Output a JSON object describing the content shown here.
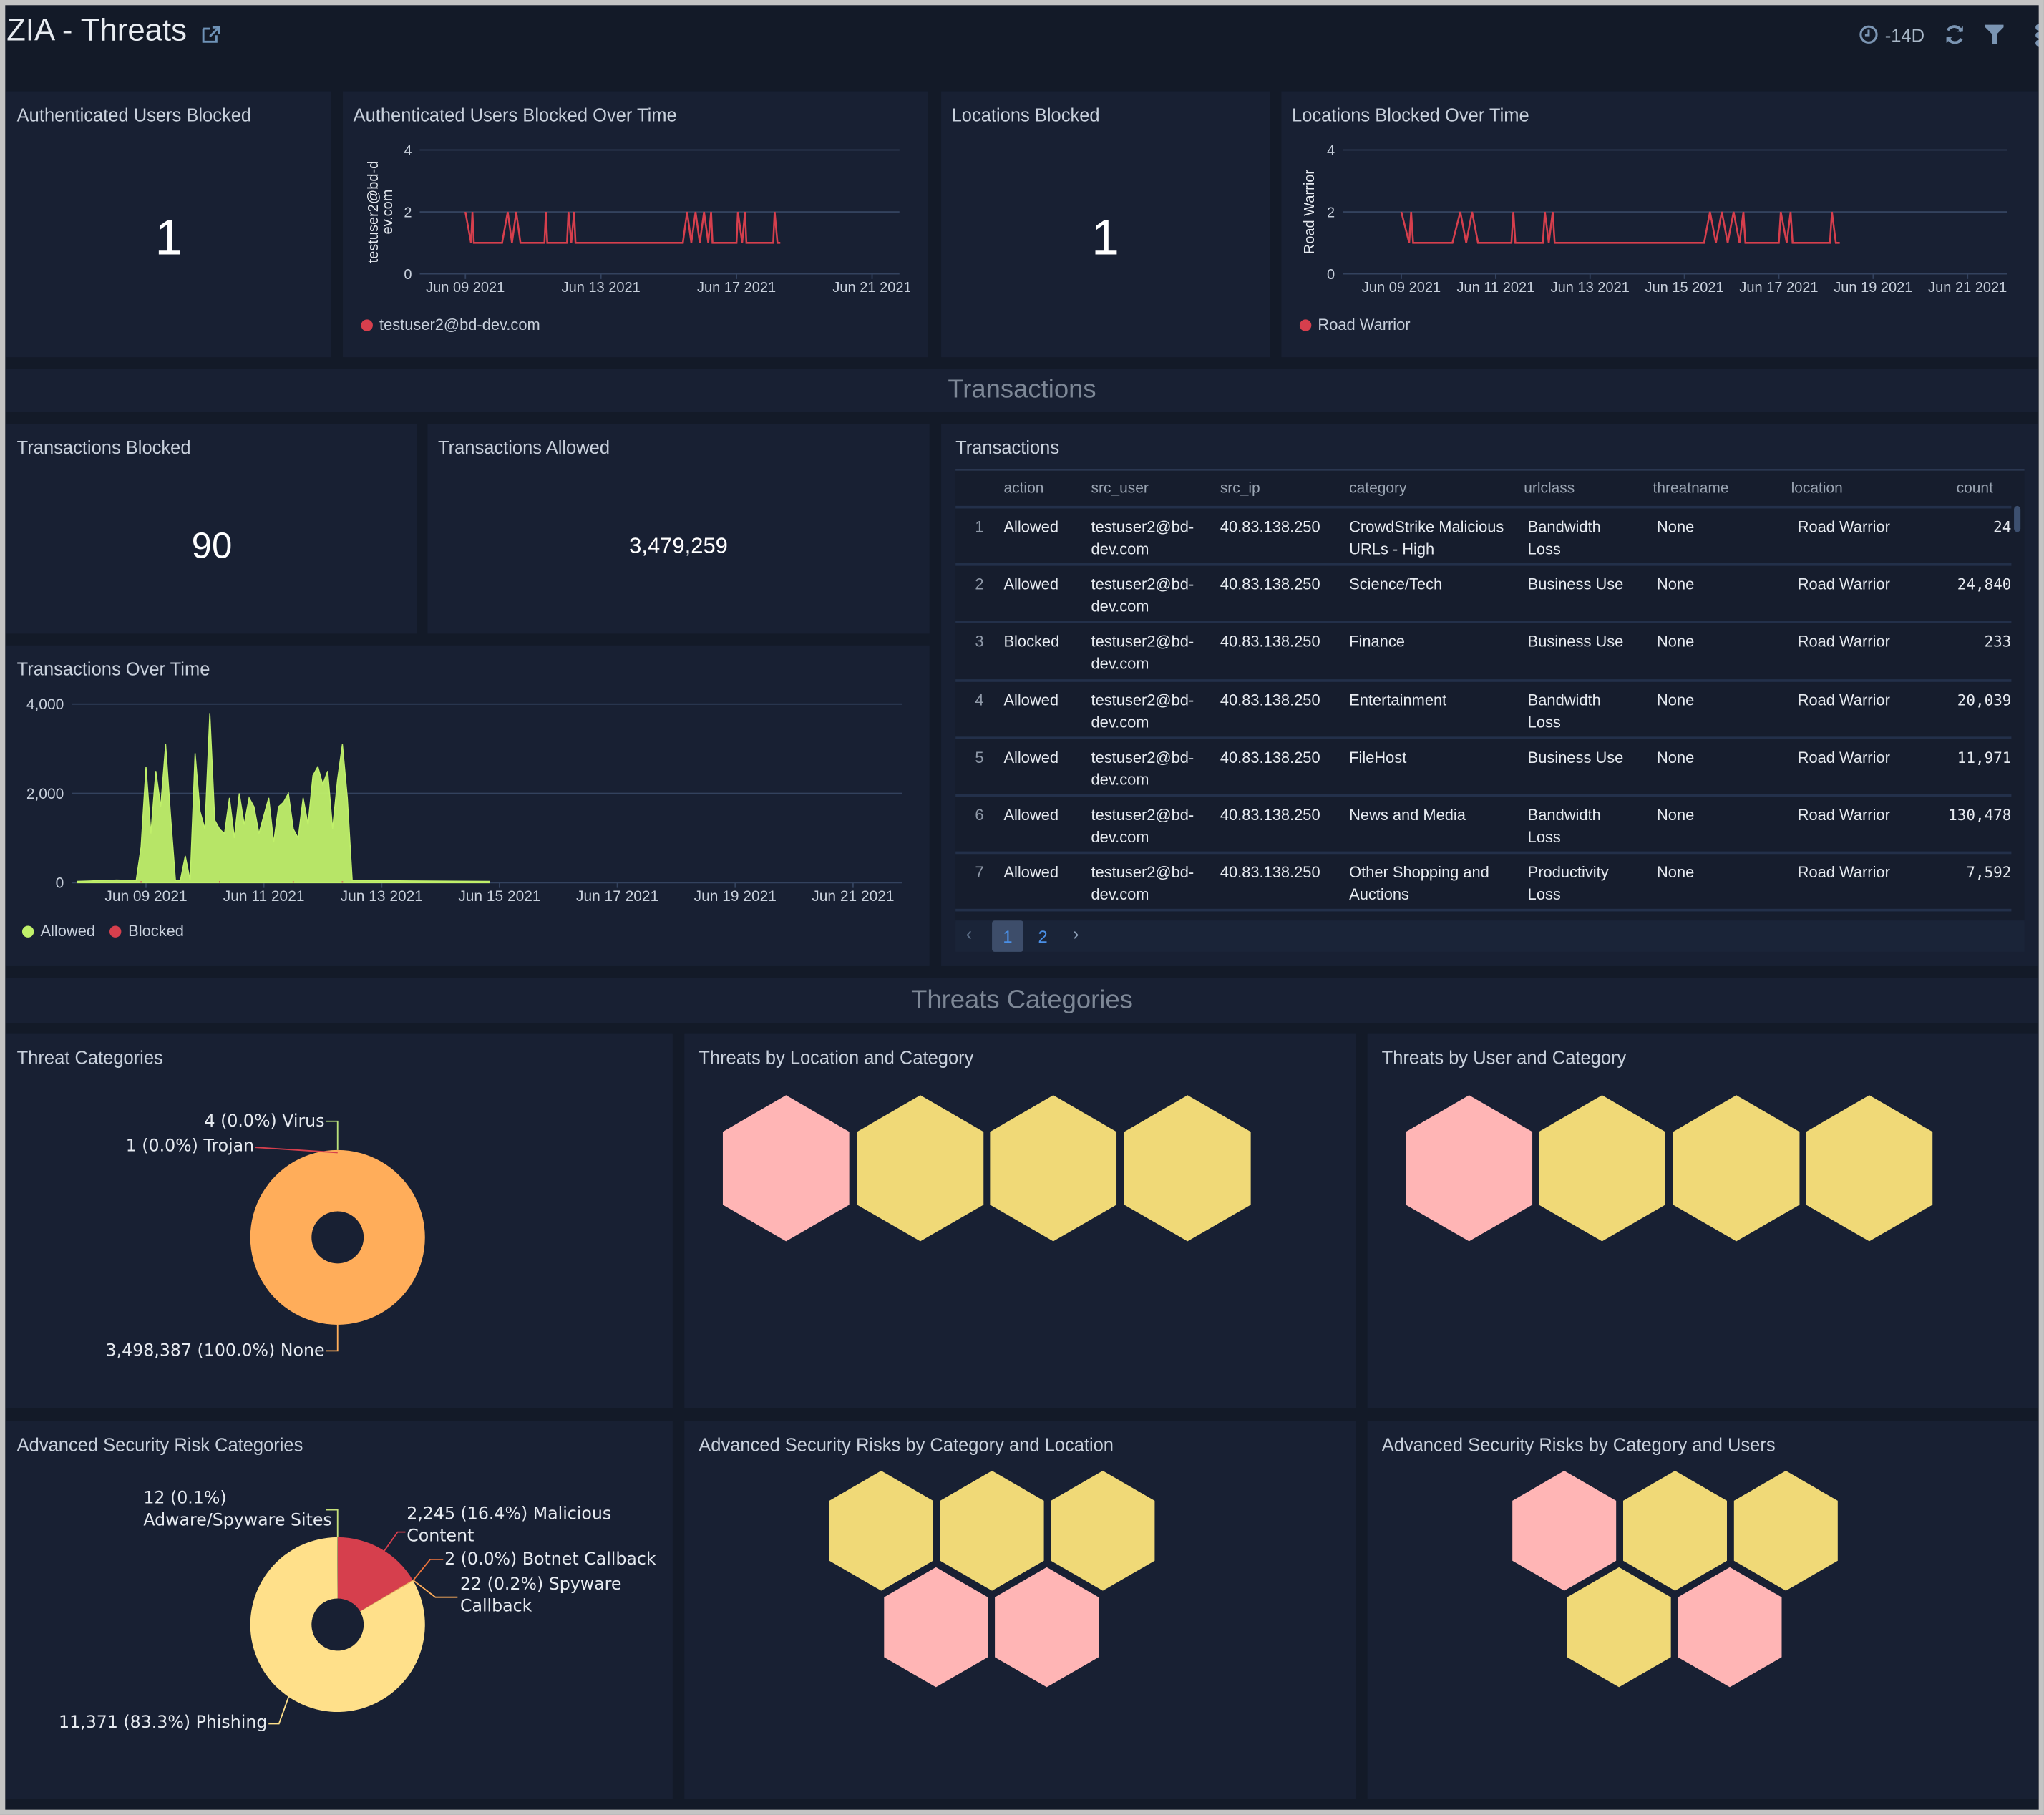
{
  "header": {
    "title": "ZIA - Threats",
    "time_range": "-14D",
    "icons": [
      "share-icon",
      "clock-icon",
      "refresh-icon",
      "filter-icon",
      "more-icon"
    ]
  },
  "sections": {
    "transactions": "Transactions",
    "threats": "Threats Categories"
  },
  "panels": {
    "auth_users_blocked": {
      "title": "Authenticated Users Blocked",
      "value": "1"
    },
    "locations_blocked": {
      "title": "Locations Blocked",
      "value": "1"
    },
    "transactions_blocked": {
      "title": "Transactions Blocked",
      "value": "90"
    },
    "transactions_allowed": {
      "title": "Transactions Allowed",
      "value": "3,479,259"
    },
    "transactions_table": {
      "title": "Transactions"
    },
    "threat_categories": {
      "title": "Threat Categories"
    },
    "threats_by_location": {
      "title": "Threats by Location and Category"
    },
    "threats_by_user": {
      "title": "Threats by User and Category"
    },
    "adv_risk_categories": {
      "title": "Advanced Security Risk Categories"
    },
    "adv_by_location": {
      "title": "Advanced Security Risks by Category and Location"
    },
    "adv_by_users": {
      "title": "Advanced Security Risks by Category and Users"
    }
  },
  "colors": {
    "background": "#131a28",
    "panel": "#182033",
    "red": "#d63f4d",
    "green": "#c0f06a",
    "orange": "#ffad5a",
    "yellow": "#ffe08a",
    "hex_pink": "#ffb5b5",
    "hex_yellow": "#f0d977",
    "accent": "#4a8fe6"
  },
  "table": {
    "columns": [
      "action",
      "src_user",
      "src_ip",
      "category",
      "urlclass",
      "threatname",
      "location",
      "count"
    ],
    "rows": [
      {
        "n": "1",
        "action": "Allowed",
        "src_user": [
          "testuser2@bd-",
          "dev.com"
        ],
        "src_ip": "40.83.138.250",
        "category": [
          "CrowdStrike Malicious",
          "URLs - High"
        ],
        "urlclass": [
          "Bandwidth",
          "Loss"
        ],
        "threatname": "None",
        "location": "Road Warrior",
        "count": "24"
      },
      {
        "n": "2",
        "action": "Allowed",
        "src_user": [
          "testuser2@bd-",
          "dev.com"
        ],
        "src_ip": "40.83.138.250",
        "category": [
          "Science/Tech"
        ],
        "urlclass": [
          "Business Use"
        ],
        "threatname": "None",
        "location": "Road Warrior",
        "count": "24,840"
      },
      {
        "n": "3",
        "action": "Blocked",
        "src_user": [
          "testuser2@bd-",
          "dev.com"
        ],
        "src_ip": "40.83.138.250",
        "category": [
          "Finance"
        ],
        "urlclass": [
          "Business Use"
        ],
        "threatname": "None",
        "location": "Road Warrior",
        "count": "233"
      },
      {
        "n": "4",
        "action": "Allowed",
        "src_user": [
          "testuser2@bd-",
          "dev.com"
        ],
        "src_ip": "40.83.138.250",
        "category": [
          "Entertainment"
        ],
        "urlclass": [
          "Bandwidth",
          "Loss"
        ],
        "threatname": "None",
        "location": "Road Warrior",
        "count": "20,039"
      },
      {
        "n": "5",
        "action": "Allowed",
        "src_user": [
          "testuser2@bd-",
          "dev.com"
        ],
        "src_ip": "40.83.138.250",
        "category": [
          "FileHost"
        ],
        "urlclass": [
          "Business Use"
        ],
        "threatname": "None",
        "location": "Road Warrior",
        "count": "11,971"
      },
      {
        "n": "6",
        "action": "Allowed",
        "src_user": [
          "testuser2@bd-",
          "dev.com"
        ],
        "src_ip": "40.83.138.250",
        "category": [
          "News and Media"
        ],
        "urlclass": [
          "Bandwidth",
          "Loss"
        ],
        "threatname": "None",
        "location": "Road Warrior",
        "count": "130,478"
      },
      {
        "n": "7",
        "action": "Allowed",
        "src_user": [
          "testuser2@bd-",
          "dev.com"
        ],
        "src_ip": "40.83.138.250",
        "category": [
          "Other Shopping and",
          "Auctions"
        ],
        "urlclass": [
          "Productivity",
          "Loss"
        ],
        "threatname": "None",
        "location": "Road Warrior",
        "count": "7,592"
      }
    ],
    "pages": [
      "1",
      "2"
    ],
    "current_page": "1"
  },
  "chart_data": [
    {
      "id": "auth_users_over_time",
      "type": "line",
      "title": "Authenticated Users Blocked Over Time",
      "ylabel": "testuser2@bd-dev.com",
      "ylim": [
        0,
        4
      ],
      "yticks": [
        "0",
        "2",
        "4"
      ],
      "xticks": [
        "Jun 09 2021",
        "Jun 13 2021",
        "Jun 17 2021",
        "Jun 21 2021"
      ],
      "grid": true,
      "legend": "bottom-left",
      "series": [
        {
          "name": "testuser2@bd-dev.com",
          "color": "#d63f4d",
          "points": [
            [
              "2021-06-09T00:00",
              2
            ],
            [
              "2021-06-09T04:00",
              1
            ],
            [
              "2021-06-09T05:00",
              2
            ],
            [
              "2021-06-09T06:00",
              1
            ],
            [
              "2021-06-10T02:00",
              1
            ],
            [
              "2021-06-10T06:00",
              2
            ],
            [
              "2021-06-10T09:00",
              1
            ],
            [
              "2021-06-10T12:00",
              2
            ],
            [
              "2021-06-10T15:00",
              1
            ],
            [
              "2021-06-11T08:00",
              1
            ],
            [
              "2021-06-11T09:00",
              2
            ],
            [
              "2021-06-11T10:00",
              1
            ],
            [
              "2021-06-12T00:00",
              1
            ],
            [
              "2021-06-12T01:00",
              2
            ],
            [
              "2021-06-12T03:00",
              1
            ],
            [
              "2021-06-12T05:00",
              2
            ],
            [
              "2021-06-12T06:00",
              1
            ],
            [
              "2021-06-15T10:00",
              1
            ],
            [
              "2021-06-15T13:00",
              2
            ],
            [
              "2021-06-15T16:00",
              1
            ],
            [
              "2021-06-15T19:00",
              2
            ],
            [
              "2021-06-15T22:00",
              1
            ],
            [
              "2021-06-16T01:00",
              2
            ],
            [
              "2021-06-16T04:00",
              1
            ],
            [
              "2021-06-16T06:00",
              2
            ],
            [
              "2021-06-16T07:00",
              1
            ],
            [
              "2021-06-17T00:00",
              1
            ],
            [
              "2021-06-17T01:00",
              2
            ],
            [
              "2021-06-17T04:00",
              1
            ],
            [
              "2021-06-17T06:00",
              2
            ],
            [
              "2021-06-17T07:00",
              1
            ],
            [
              "2021-06-18T02:00",
              1
            ],
            [
              "2021-06-18T03:00",
              2
            ],
            [
              "2021-06-18T05:00",
              1
            ],
            [
              "2021-06-18T07:00",
              1
            ]
          ]
        }
      ]
    },
    {
      "id": "locations_over_time",
      "type": "line",
      "title": "Locations Blocked Over Time",
      "ylabel": "Road Warrior",
      "ylim": [
        0,
        4
      ],
      "yticks": [
        "0",
        "2",
        "4"
      ],
      "xticks": [
        "Jun 09 2021",
        "Jun 11 2021",
        "Jun 13 2021",
        "Jun 15 2021",
        "Jun 17 2021",
        "Jun 19 2021",
        "Jun 21 2021"
      ],
      "grid": true,
      "legend": "bottom-left",
      "series": [
        {
          "name": "Road Warrior",
          "color": "#d63f4d",
          "points": [
            [
              "2021-06-09T00:00",
              2
            ],
            [
              "2021-06-09T04:00",
              1
            ],
            [
              "2021-06-09T05:00",
              2
            ],
            [
              "2021-06-09T06:00",
              1
            ],
            [
              "2021-06-10T02:00",
              1
            ],
            [
              "2021-06-10T06:00",
              2
            ],
            [
              "2021-06-10T09:00",
              1
            ],
            [
              "2021-06-10T12:00",
              2
            ],
            [
              "2021-06-10T15:00",
              1
            ],
            [
              "2021-06-11T08:00",
              1
            ],
            [
              "2021-06-11T09:00",
              2
            ],
            [
              "2021-06-11T10:00",
              1
            ],
            [
              "2021-06-12T00:00",
              1
            ],
            [
              "2021-06-12T01:00",
              2
            ],
            [
              "2021-06-12T03:00",
              1
            ],
            [
              "2021-06-12T05:00",
              2
            ],
            [
              "2021-06-12T06:00",
              1
            ],
            [
              "2021-06-15T10:00",
              1
            ],
            [
              "2021-06-15T13:00",
              2
            ],
            [
              "2021-06-15T16:00",
              1
            ],
            [
              "2021-06-15T19:00",
              2
            ],
            [
              "2021-06-15T22:00",
              1
            ],
            [
              "2021-06-16T01:00",
              2
            ],
            [
              "2021-06-16T04:00",
              1
            ],
            [
              "2021-06-16T06:00",
              2
            ],
            [
              "2021-06-16T07:00",
              1
            ],
            [
              "2021-06-17T00:00",
              1
            ],
            [
              "2021-06-17T01:00",
              2
            ],
            [
              "2021-06-17T04:00",
              1
            ],
            [
              "2021-06-17T06:00",
              2
            ],
            [
              "2021-06-17T07:00",
              1
            ],
            [
              "2021-06-18T02:00",
              1
            ],
            [
              "2021-06-18T03:00",
              2
            ],
            [
              "2021-06-18T05:00",
              1
            ],
            [
              "2021-06-18T07:00",
              1
            ]
          ]
        }
      ]
    },
    {
      "id": "transactions_over_time",
      "type": "area",
      "title": "Transactions Over Time",
      "ylim": [
        0,
        4000
      ],
      "yticks": [
        "0",
        "2,000",
        "4,000"
      ],
      "xticks": [
        "Jun 09 2021",
        "Jun 11 2021",
        "Jun 13 2021",
        "Jun 15 2021",
        "Jun 17 2021",
        "Jun 19 2021",
        "Jun 21 2021"
      ],
      "grid": true,
      "legend": "bottom-left",
      "series": [
        {
          "name": "Allowed",
          "color": "#c0f06a",
          "points": [
            [
              "2021-06-07T20:00",
              30
            ],
            [
              "2021-06-08T12:00",
              60
            ],
            [
              "2021-06-08T20:00",
              50
            ],
            [
              "2021-06-08T22:00",
              800
            ],
            [
              "2021-06-09T00:00",
              2600
            ],
            [
              "2021-06-09T02:00",
              1100
            ],
            [
              "2021-06-09T04:00",
              2500
            ],
            [
              "2021-06-09T06:00",
              1700
            ],
            [
              "2021-06-09T08:00",
              3100
            ],
            [
              "2021-06-09T10:00",
              1500
            ],
            [
              "2021-06-09T12:00",
              50
            ],
            [
              "2021-06-09T14:00",
              50
            ],
            [
              "2021-06-09T16:00",
              600
            ],
            [
              "2021-06-09T18:00",
              50
            ],
            [
              "2021-06-09T20:00",
              2900
            ],
            [
              "2021-06-09T22:00",
              1600
            ],
            [
              "2021-06-10T00:00",
              1200
            ],
            [
              "2021-06-10T02:00",
              3800
            ],
            [
              "2021-06-10T04:00",
              1400
            ],
            [
              "2021-06-10T06:00",
              1200
            ],
            [
              "2021-06-10T08:00",
              1100
            ],
            [
              "2021-06-10T10:00",
              1900
            ],
            [
              "2021-06-10T12:00",
              1000
            ],
            [
              "2021-06-10T14:00",
              2000
            ],
            [
              "2021-06-10T16:00",
              1300
            ],
            [
              "2021-06-10T18:00",
              1900
            ],
            [
              "2021-06-10T20:00",
              1700
            ],
            [
              "2021-06-10T22:00",
              1100
            ],
            [
              "2021-06-11T00:00",
              1500
            ],
            [
              "2021-06-11T02:00",
              1900
            ],
            [
              "2021-06-11T04:00",
              900
            ],
            [
              "2021-06-11T06:00",
              1700
            ],
            [
              "2021-06-11T08:00",
              1800
            ],
            [
              "2021-06-11T10:00",
              2000
            ],
            [
              "2021-06-11T12:00",
              1200
            ],
            [
              "2021-06-11T14:00",
              1000
            ],
            [
              "2021-06-11T16:00",
              1900
            ],
            [
              "2021-06-11T18:00",
              1300
            ],
            [
              "2021-06-11T20:00",
              2400
            ],
            [
              "2021-06-11T22:00",
              2600
            ],
            [
              "2021-06-12T00:00",
              2200
            ],
            [
              "2021-06-12T02:00",
              2500
            ],
            [
              "2021-06-12T04:00",
              1200
            ],
            [
              "2021-06-12T06:00",
              2300
            ],
            [
              "2021-06-12T08:00",
              3100
            ],
            [
              "2021-06-12T10:00",
              1900
            ],
            [
              "2021-06-12T12:00",
              50
            ],
            [
              "2021-06-13T12:00",
              40
            ],
            [
              "2021-06-14T20:00",
              30
            ]
          ]
        },
        {
          "name": "Blocked",
          "color": "#d63f4d",
          "points": [
            [
              "2021-06-08T22:00",
              2
            ],
            [
              "2021-06-10T06:00",
              3
            ],
            [
              "2021-06-11T12:00",
              2
            ],
            [
              "2021-06-12T08:00",
              2
            ]
          ]
        }
      ]
    },
    {
      "id": "threat_categories",
      "type": "pie",
      "title": "Threat Categories",
      "donut": true,
      "slices": [
        {
          "label": "3,498,387 (100.0%) None",
          "name": "None",
          "value": 3498387,
          "percent": 100.0,
          "color": "#ffad5a"
        },
        {
          "label": "4 (0.0%) Virus",
          "name": "Virus",
          "value": 4,
          "percent": 0.0,
          "color": "#b9e07a"
        },
        {
          "label": "1 (0.0%) Trojan",
          "name": "Trojan",
          "value": 1,
          "percent": 0.0,
          "color": "#d63f4d"
        }
      ]
    },
    {
      "id": "adv_risk_categories",
      "type": "pie",
      "title": "Advanced Security Risk Categories",
      "donut": true,
      "slices": [
        {
          "label": "2,245 (16.4%) Malicious Content",
          "name": "Malicious Content",
          "value": 2245,
          "percent": 16.4,
          "color": "#d63f4d"
        },
        {
          "label": "2 (0.0%) Botnet Callback",
          "name": "Botnet Callback",
          "value": 2,
          "percent": 0.0,
          "color": "#f0763c"
        },
        {
          "label": "22 (0.2%) Spyware Callback",
          "name": "Spyware Callback",
          "value": 22,
          "percent": 0.2,
          "color": "#ffad5a"
        },
        {
          "label": "11,371 (83.3%) Phishing",
          "name": "Phishing",
          "value": 11371,
          "percent": 83.3,
          "color": "#ffe08a"
        },
        {
          "label": "12 (0.1%) Adware/Spyware Sites",
          "name": "Adware/Spyware Sites",
          "value": 12,
          "percent": 0.1,
          "color": "#c6e07a"
        }
      ]
    }
  ],
  "honeycombs": {
    "threats_by_location": [
      "#ffb5b5",
      "#f0d977",
      "#f0d977",
      "#f0d977"
    ],
    "threats_by_user": [
      "#ffb5b5",
      "#f0d977",
      "#f0d977",
      "#f0d977"
    ],
    "adv_by_location": [
      "#f0d977",
      "#f0d977",
      "#f0d977",
      "#ffb5b5",
      "#ffb5b5"
    ],
    "adv_by_users": [
      "#ffb5b5",
      "#f0d977",
      "#f0d977",
      "#f0d977",
      "#ffb5b5"
    ]
  }
}
